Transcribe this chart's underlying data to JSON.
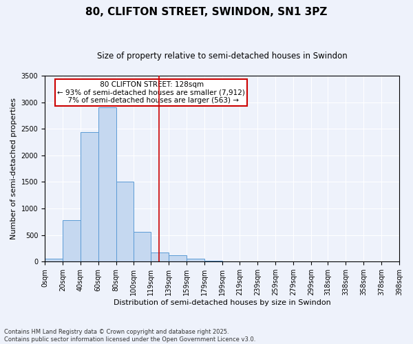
{
  "title": "80, CLIFTON STREET, SWINDON, SN1 3PZ",
  "subtitle": "Size of property relative to semi-detached houses in Swindon",
  "xlabel": "Distribution of semi-detached houses by size in Swindon",
  "ylabel": "Number of semi-detached properties",
  "property_label": "80 CLIFTON STREET: 128sqm",
  "pct_smaller": 93,
  "count_smaller": 7912,
  "pct_larger": 7,
  "count_larger": 563,
  "bin_edges": [
    0,
    20,
    40,
    60,
    80,
    100,
    119,
    139,
    159,
    179,
    199,
    219,
    239,
    259,
    279,
    299,
    318,
    338,
    358,
    378,
    398
  ],
  "bar_heights": [
    55,
    780,
    2440,
    2900,
    1510,
    555,
    170,
    115,
    50,
    20,
    5,
    2,
    1,
    0,
    0,
    0,
    0,
    0,
    0,
    0
  ],
  "bar_color": "#c5d8f0",
  "bar_edge_color": "#5b9bd5",
  "vline_color": "#cc0000",
  "vline_x": 128,
  "annotation_box_color": "#cc0000",
  "background_color": "#eef2fb",
  "grid_color": "#ffffff",
  "ylim": [
    0,
    3500
  ],
  "yticks": [
    0,
    500,
    1000,
    1500,
    2000,
    2500,
    3000,
    3500
  ],
  "footnote": "Contains HM Land Registry data © Crown copyright and database right 2025.\nContains public sector information licensed under the Open Government Licence v3.0.",
  "title_fontsize": 11,
  "subtitle_fontsize": 8.5,
  "label_fontsize": 8,
  "tick_fontsize": 7,
  "annotation_fontsize": 7.5,
  "footnote_fontsize": 6
}
